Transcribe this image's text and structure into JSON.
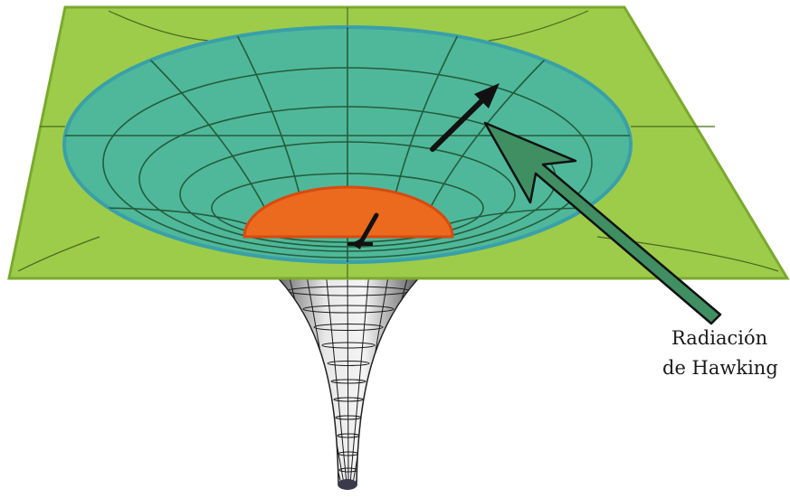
{
  "diagram": {
    "annotation": {
      "line1": "Radiación",
      "line2": "de Hawking"
    },
    "colors": {
      "plane": "#9ccc4a",
      "plane_edge": "#7aa92e",
      "funnel": "#4fb89a",
      "funnel_rim": "#3aa0a8",
      "grid": "#245c3c",
      "horizon": "#ec6a1e",
      "horizon_edge": "#d84a10",
      "throat": "#555555",
      "arrow": "#111111",
      "hawking_arrow_fill": "#3f8f62"
    }
  }
}
